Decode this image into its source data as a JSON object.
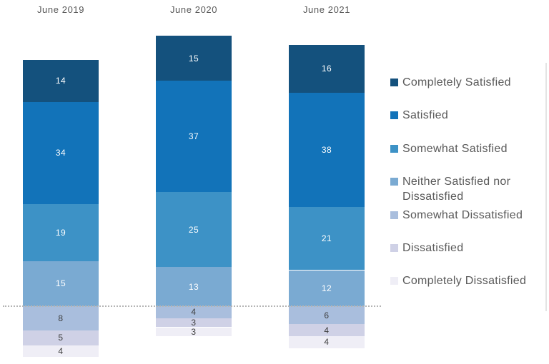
{
  "chart_data": {
    "type": "bar",
    "variant": "diverging-stacked-column",
    "title": "",
    "categories": [
      "June 2019",
      "June 2020",
      "June 2021"
    ],
    "series": [
      {
        "name": "Completely Satisfied",
        "color": "#14517D",
        "label_color": "#FFFFFF",
        "values": [
          14,
          15,
          16
        ]
      },
      {
        "name": "Satisfied",
        "color": "#1273B9",
        "label_color": "#FFFFFF",
        "values": [
          34,
          37,
          38
        ]
      },
      {
        "name": "Somewhat Satisfied",
        "color": "#3D92C6",
        "label_color": "#FFFFFF",
        "values": [
          19,
          25,
          21
        ]
      },
      {
        "name": "Neither Satisfied nor Dissatisfied",
        "color": "#7AAAD2",
        "label_color": "#FFFFFF",
        "values": [
          15,
          13,
          12
        ]
      },
      {
        "name": "Somewhat Dissatisfied",
        "color": "#A9BEDD",
        "label_color": "#3D3D3D",
        "values": [
          8,
          4,
          6
        ]
      },
      {
        "name": "Dissatisfied",
        "color": "#CFD1E6",
        "label_color": "#3D3D3D",
        "values": [
          5,
          3,
          4
        ]
      },
      {
        "name": "Completely Dissatisfied",
        "color": "#EFEEF6",
        "label_color": "#3D3D3D",
        "values": [
          4,
          3,
          4
        ]
      }
    ],
    "above_series_count": 4,
    "baseline_between": [
      "Neither Satisfied nor Dissatisfied",
      "Somewhat Dissatisfied"
    ],
    "data_labels": "inside",
    "legend_position": "right",
    "grid": "off",
    "xlabel": "",
    "ylabel": "",
    "header_color": "#595959",
    "legend_text_color": "#595959",
    "divider_line_color": "#B5B5B5"
  }
}
